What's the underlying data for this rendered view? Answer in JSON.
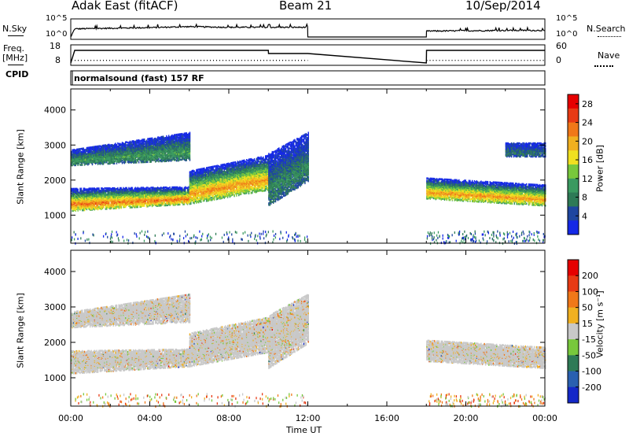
{
  "header": {
    "station": "Adak East (fitACF)",
    "beam": "Beam 21",
    "date": "10/Sep/2014"
  },
  "params": {
    "nsky_label": "N.Sky",
    "nsearch_label": "N.Search",
    "freq_label_1": "Freq.",
    "freq_label_2": "[MHz]",
    "nave_label": "Nave",
    "cpid_label": "CPID",
    "cpid_text": "normalsound (fast) 157 RF",
    "nsky_tick_hi": "10^5",
    "nsky_tick_lo": "10^0",
    "freq_tick_hi": "18",
    "freq_tick_lo": "8",
    "nave_tick_hi": "60",
    "nave_tick_lo": "0"
  },
  "axes": {
    "y_label": "Slant Range [km]",
    "x_label": "Time UT",
    "x_ticks": [
      "00:00",
      "04:00",
      "08:00",
      "12:00",
      "16:00",
      "20:00",
      "00:00"
    ],
    "y_ticks": [
      "1000",
      "2000",
      "3000",
      "4000"
    ]
  },
  "colorbars": {
    "power": {
      "label": "Power [dB]",
      "ticks": [
        "4",
        "8",
        "12",
        "16",
        "20",
        "24",
        "28"
      ],
      "colors": [
        "#1428e6",
        "#1e46a0",
        "#2e7a56",
        "#3a9a60",
        "#78c83c",
        "#f0e020",
        "#f0b020",
        "#f07818",
        "#e83a14",
        "#e60000"
      ]
    },
    "velocity": {
      "label": "Velocity [m s⁻¹]",
      "ticks": [
        "200",
        "100",
        "50",
        "15",
        "-15",
        "-50",
        "-100",
        "-200"
      ],
      "colors": [
        "#1428c8",
        "#2a60b0",
        "#2e7a56",
        "#78c83c",
        "#c8c8c8",
        "#f0b020",
        "#f07818",
        "#e83a14",
        "#e60000"
      ]
    }
  },
  "chart_data": [
    {
      "type": "heatmap",
      "title": "Power",
      "x_unit": "hours UT",
      "xlim": [
        0,
        24
      ],
      "ylim": [
        200,
        4600
      ],
      "ylabel": "Slant Range [km]",
      "xlabel": "Time UT",
      "colorbar_label": "Power [dB]",
      "colorbar_range": [
        0,
        30
      ],
      "data_gaps": [
        [
          12.0,
          18.0
        ]
      ],
      "bands": [
        {
          "t": [
            0.0,
            6.0
          ],
          "r_low": [
            1150,
            1350
          ],
          "r_high": [
            1800,
            1850
          ],
          "peak_db": 24
        },
        {
          "t": [
            6.0,
            10.0
          ],
          "r_low": [
            1350,
            1750
          ],
          "r_high": [
            2300,
            2750
          ],
          "peak_db": 22
        },
        {
          "t": [
            0.0,
            6.0
          ],
          "r_low": [
            2450,
            2600
          ],
          "r_high": [
            2900,
            3400
          ],
          "peak_db": 10
        },
        {
          "t": [
            10.0,
            12.0
          ],
          "r_low": [
            1300,
            2000
          ],
          "r_high": [
            2800,
            3400
          ],
          "peak_db": 8
        },
        {
          "t": [
            18.0,
            24.0
          ],
          "r_low": [
            1500,
            1300
          ],
          "r_high": [
            2100,
            1900
          ],
          "peak_db": 22
        },
        {
          "t": [
            22.0,
            24.0
          ],
          "r_low": [
            2700,
            2700
          ],
          "r_high": [
            3100,
            3100
          ],
          "peak_db": 6
        }
      ]
    },
    {
      "type": "heatmap",
      "title": "Velocity",
      "x_unit": "hours UT",
      "xlim": [
        0,
        24
      ],
      "ylim": [
        200,
        4600
      ],
      "ylabel": "Slant Range [km]",
      "xlabel": "Time UT",
      "colorbar_label": "Velocity [m s⁻¹]",
      "colorbar_range": [
        -200,
        200
      ],
      "dominant_value": "-15 to 15 (ground scatter, grey)",
      "data_gaps": [
        [
          12.0,
          18.0
        ]
      ],
      "bands": [
        {
          "t": [
            0.0,
            6.0
          ],
          "r_low": [
            1150,
            1350
          ],
          "r_high": [
            1800,
            1850
          ]
        },
        {
          "t": [
            6.0,
            10.0
          ],
          "r_low": [
            1350,
            1750
          ],
          "r_high": [
            2300,
            2750
          ]
        },
        {
          "t": [
            0.0,
            6.0
          ],
          "r_low": [
            2450,
            2600
          ],
          "r_high": [
            2900,
            3400
          ]
        },
        {
          "t": [
            10.0,
            12.0
          ],
          "r_low": [
            1300,
            2000
          ],
          "r_high": [
            2800,
            3400
          ]
        },
        {
          "t": [
            18.0,
            24.0
          ],
          "r_low": [
            1500,
            1300
          ],
          "r_high": [
            2100,
            1900
          ]
        }
      ]
    },
    {
      "type": "line",
      "title": "N.Sky",
      "x": [
        0,
        0.2,
        2,
        4,
        6,
        8,
        10,
        11.99,
        12,
        18,
        18.01,
        20,
        22,
        24
      ],
      "y_log10": [
        0,
        2.5,
        2.7,
        2.9,
        3.2,
        3.0,
        3.0,
        3.0,
        0,
        0,
        1.8,
        1.9,
        2.0,
        2.0
      ]
    },
    {
      "type": "line",
      "title": "Freq. [MHz]",
      "x": [
        0,
        0.2,
        10,
        10.01,
        12,
        18,
        18.01,
        24
      ],
      "y": [
        8,
        16,
        16,
        14,
        14,
        8,
        16,
        16
      ]
    },
    {
      "type": "line",
      "title": "Nave",
      "x": [
        0.2,
        12,
        18.01,
        24
      ],
      "y": [
        10,
        10,
        10,
        10
      ]
    }
  ]
}
